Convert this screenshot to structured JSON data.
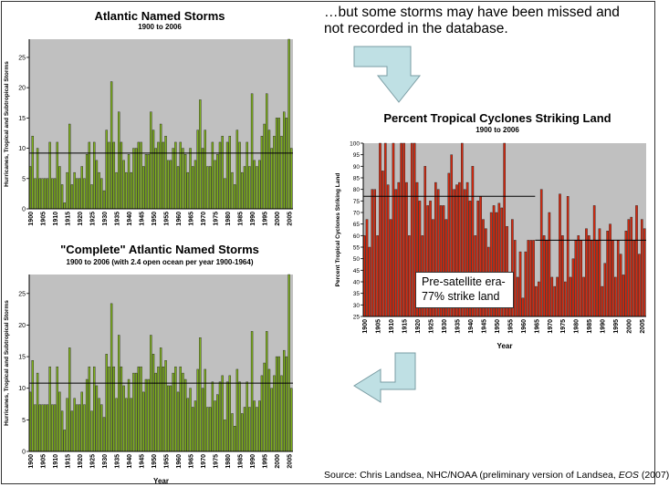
{
  "callout_text": "…but some storms may have been missed and not recorded in the database.",
  "source_prefix": "Source:  Chris Landsea, NHC/NOAA (preliminary version of Landsea, ",
  "source_italic": "EOS",
  "source_suffix": " (2007)",
  "annotation": {
    "line1": "Pre-satellite era-",
    "line2": "77% strike land"
  },
  "colors": {
    "plot_bg": "#c0c0c0",
    "green_bar": "#7fb01e",
    "red_bar": "#d42a10",
    "arrow": "#bfe0e4"
  },
  "chart_data": [
    {
      "type": "bar",
      "title": "Atlantic Named Storms",
      "subtitle": "1900 to 2006",
      "ylabel": "Hurricanes, Tropical and Subtropical Storms",
      "xlabel": "",
      "ylim": [
        0,
        28
      ],
      "yticks": [
        0,
        5,
        10,
        15,
        20,
        25
      ],
      "x_tick_labels": [
        "1900",
        "1905",
        "1910",
        "1915",
        "1920",
        "1925",
        "1930",
        "1935",
        "1940",
        "1945",
        "1950",
        "1955",
        "1960",
        "1965",
        "1970",
        "1975",
        "1980",
        "1985",
        "1990",
        "1995",
        "2000",
        "2005"
      ],
      "mean_line": 9.2,
      "x_start": 1900,
      "values": [
        7,
        12,
        5,
        10,
        5,
        5,
        5,
        5,
        11,
        5,
        5,
        11,
        7,
        4,
        1,
        6,
        14,
        4,
        6,
        5,
        5,
        7,
        5,
        9,
        11,
        4,
        11,
        8,
        6,
        5,
        3,
        13,
        11,
        21,
        11,
        6,
        16,
        11,
        8,
        6,
        9,
        6,
        10,
        10,
        11,
        11,
        7,
        9,
        9,
        16,
        13,
        10,
        11,
        14,
        11,
        12,
        8,
        8,
        10,
        11,
        7,
        11,
        10,
        9,
        6,
        10,
        7,
        8,
        13,
        18,
        10,
        13,
        7,
        7,
        11,
        8,
        9,
        11,
        12,
        5,
        11,
        12,
        6,
        4,
        13,
        11,
        6,
        7,
        11,
        7,
        19,
        8,
        7,
        8,
        12,
        14,
        19,
        13,
        10,
        12,
        15,
        15,
        12,
        16,
        15,
        28,
        10
      ]
    },
    {
      "type": "bar",
      "title": "\"Complete\" Atlantic Named Storms",
      "subtitle": "1900 to 2006 (with 2.4 open ocean per year 1900-1964)",
      "ylabel": "Hurricanes, Tropical and Subtropical Storms",
      "xlabel": "Year",
      "ylim": [
        0,
        28
      ],
      "yticks": [
        0,
        5,
        10,
        15,
        20,
        25
      ],
      "x_tick_labels": [
        "1900",
        "1905",
        "1910",
        "1915",
        "1920",
        "1925",
        "1930",
        "1935",
        "1940",
        "1945",
        "1950",
        "1955",
        "1960",
        "1965",
        "1970",
        "1975",
        "1980",
        "1985",
        "1990",
        "1995",
        "2000",
        "2005"
      ],
      "mean_line": 10.8,
      "x_start": 1900,
      "values": [
        9.4,
        14.4,
        7.4,
        12.4,
        7.4,
        7.4,
        7.4,
        7.4,
        13.4,
        7.4,
        7.4,
        13.4,
        9.4,
        6.4,
        3.4,
        8.4,
        16.4,
        6.4,
        8.4,
        7.4,
        7.4,
        9.4,
        7.4,
        11.4,
        13.4,
        6.4,
        13.4,
        10.4,
        8.4,
        7.4,
        5.4,
        15.4,
        13.4,
        23.4,
        13.4,
        8.4,
        18.4,
        13.4,
        10.4,
        8.4,
        11.4,
        8.4,
        12.4,
        12.4,
        13.4,
        13.4,
        9.4,
        11.4,
        11.4,
        18.4,
        15.4,
        12.4,
        13.4,
        16.4,
        13.4,
        14.4,
        10.4,
        10.4,
        12.4,
        13.4,
        9.4,
        13.4,
        12.4,
        11.4,
        8.4,
        10,
        7,
        8,
        13,
        18,
        10,
        13,
        7,
        7,
        11,
        8,
        9,
        11,
        12,
        5,
        11,
        12,
        6,
        4,
        13,
        11,
        6,
        7,
        11,
        7,
        19,
        8,
        7,
        8,
        12,
        14,
        19,
        13,
        10,
        12,
        15,
        15,
        12,
        16,
        15,
        28,
        10
      ]
    },
    {
      "type": "bar",
      "title": "Percent Tropical Cyclones Striking Land",
      "subtitle": "1900 to 2006",
      "ylabel": "Percent Tropical Cyclones Striking Land",
      "xlabel": "Year",
      "ylim": [
        25,
        100
      ],
      "yticks": [
        25,
        30,
        35,
        40,
        45,
        50,
        55,
        60,
        65,
        70,
        75,
        80,
        85,
        90,
        95,
        100
      ],
      "x_tick_labels": [
        "1900",
        "1905",
        "1910",
        "1915",
        "1920",
        "1925",
        "1930",
        "1935",
        "1940",
        "1945",
        "1950",
        "1955",
        "1960",
        "1965",
        "1970",
        "1975",
        "1980",
        "1985",
        "1990",
        "1995",
        "2000",
        "2005"
      ],
      "mean_lines": [
        {
          "from": 1900,
          "to": 1964,
          "value": 77
        },
        {
          "from": 1965,
          "to": 2006,
          "value": 58
        }
      ],
      "x_start": 1900,
      "values": [
        60,
        67,
        55,
        80,
        80,
        60,
        100,
        88,
        100,
        82,
        67,
        100,
        80,
        83,
        100,
        100,
        83,
        60,
        100,
        100,
        83,
        75,
        60,
        90,
        73,
        75,
        67,
        83,
        80,
        73,
        73,
        67,
        87,
        95,
        80,
        82,
        83,
        100,
        80,
        83,
        75,
        90,
        60,
        75,
        77,
        67,
        63,
        55,
        70,
        73,
        70,
        74,
        72,
        100,
        64,
        33,
        67,
        58,
        42,
        53,
        33,
        53,
        58,
        58,
        58,
        38,
        40,
        80,
        60,
        58,
        70,
        42,
        38,
        42,
        78,
        60,
        40,
        77,
        42,
        50,
        58,
        60,
        58,
        42,
        63,
        60,
        58,
        73,
        58,
        63,
        38,
        48,
        62,
        65,
        58,
        42,
        58,
        52,
        43,
        62,
        67,
        68,
        58,
        73,
        52,
        67,
        63
      ]
    }
  ]
}
